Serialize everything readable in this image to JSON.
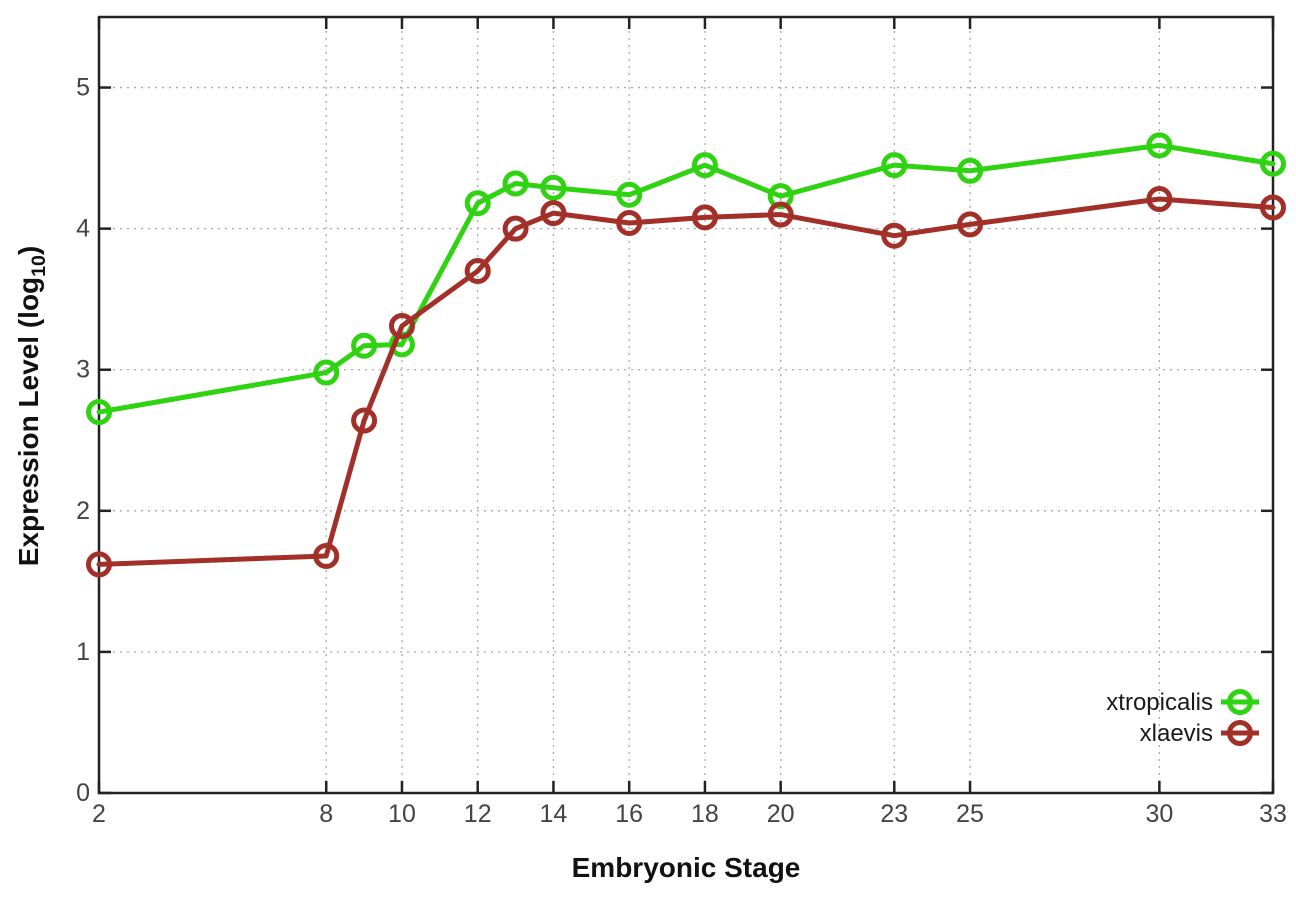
{
  "chart_data": {
    "type": "line",
    "title": "",
    "xlabel": "Embryonic Stage",
    "ylabel": "Expression Level (log10)",
    "ylabel_parts": {
      "main": "Expression Level (log",
      "sub": "10",
      "close": ")"
    },
    "x": [
      2,
      8,
      9,
      10,
      12,
      13,
      14,
      16,
      18,
      20,
      23,
      25,
      30,
      33
    ],
    "series": [
      {
        "name": "xtropicalis",
        "color": "#2fd312",
        "values": [
          2.7,
          2.98,
          3.17,
          3.18,
          4.18,
          4.32,
          4.29,
          4.24,
          4.45,
          4.23,
          4.45,
          4.41,
          4.59,
          4.46
        ]
      },
      {
        "name": "xlaevis",
        "color": "#a33028",
        "values": [
          1.62,
          1.68,
          2.64,
          3.31,
          3.7,
          4.0,
          4.11,
          4.04,
          4.08,
          4.1,
          3.95,
          4.03,
          4.21,
          4.15
        ]
      }
    ],
    "x_ticks": [
      2,
      8,
      10,
      12,
      14,
      16,
      18,
      20,
      23,
      25,
      30,
      33
    ],
    "y_ticks": [
      0,
      1,
      2,
      3,
      4,
      5
    ],
    "xlim": [
      2,
      33
    ],
    "ylim": [
      0,
      5.5
    ],
    "grid": true,
    "legend_position": "inside-bottom-right",
    "style": {
      "axis_color": "#222222",
      "grid_color": "#aaaaaa",
      "tick_label_color": "#444444",
      "legend_text_color": "#1a1a1a",
      "background": "#ffffff"
    }
  }
}
